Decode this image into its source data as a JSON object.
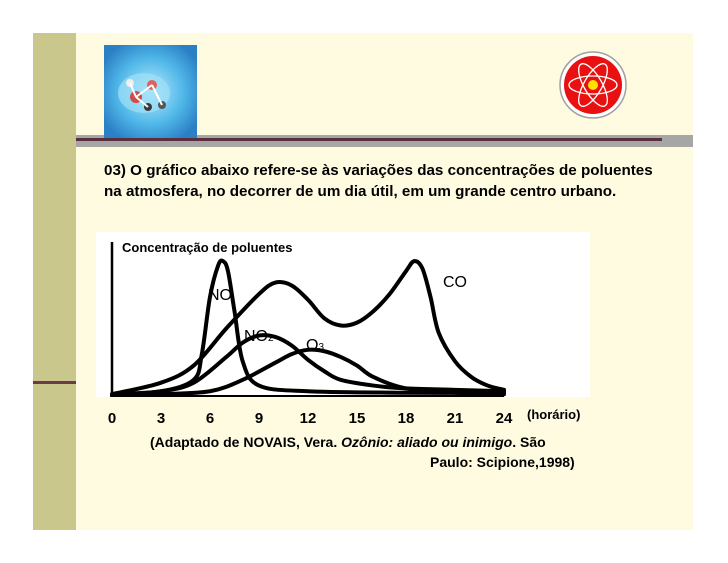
{
  "question": {
    "text": "03) O gráfico abaixo refere-se às variações das concentrações de poluentes na atmosfera, no decorrer de um dia útil, em um grande centro urbano."
  },
  "citation": {
    "prefix": "(Adaptado de NOVAIS, Vera. ",
    "title": "Ozônio: aliado ou inimigo",
    "suffix_line1": ". São",
    "line2": "Paulo: Scipione,1998)"
  },
  "chart_data": {
    "type": "line",
    "ylabel": "Concentração de poluentes",
    "xlabel": "(horário)",
    "x_ticks": [
      "0",
      "3",
      "6",
      "9",
      "12",
      "15",
      "18",
      "21",
      "24"
    ],
    "xlim": [
      0,
      24
    ],
    "ylim": [
      0,
      100
    ],
    "grid": false,
    "legend": "inline labels",
    "series": [
      {
        "name": "CO",
        "x": [
          0,
          3,
          5,
          7,
          9,
          10,
          11,
          12,
          13,
          14,
          15,
          16,
          17,
          18,
          18.5,
          19,
          19.5,
          20,
          21,
          22,
          23,
          24
        ],
        "y": [
          2,
          10,
          22,
          48,
          72,
          80,
          78,
          68,
          55,
          50,
          52,
          60,
          72,
          88,
          95,
          90,
          70,
          45,
          25,
          14,
          8,
          5
        ]
      },
      {
        "name": "NO",
        "x": [
          0,
          3,
          5,
          5.5,
          6,
          6.5,
          6.8,
          7.1,
          7.5,
          8,
          9,
          12,
          18,
          24
        ],
        "y": [
          2,
          4,
          12,
          30,
          70,
          92,
          95,
          88,
          60,
          25,
          8,
          4,
          3,
          3
        ]
      },
      {
        "name": "NO₂",
        "label_main": "NO",
        "label_sub": "2",
        "x": [
          0,
          3,
          5,
          7,
          8,
          9,
          10,
          11,
          12,
          13,
          14,
          16,
          18,
          21,
          24
        ],
        "y": [
          1,
          4,
          10,
          28,
          38,
          43,
          42,
          36,
          26,
          18,
          12,
          8,
          6,
          5,
          4
        ]
      },
      {
        "name": "O₃",
        "label_main": "O",
        "label_sub": "3",
        "x": [
          0,
          3,
          6,
          8,
          10,
          11,
          12,
          13,
          14,
          15,
          16,
          18,
          21,
          24
        ],
        "y": [
          1,
          2,
          4,
          12,
          24,
          30,
          33,
          32,
          28,
          22,
          14,
          6,
          3,
          2
        ]
      }
    ]
  }
}
